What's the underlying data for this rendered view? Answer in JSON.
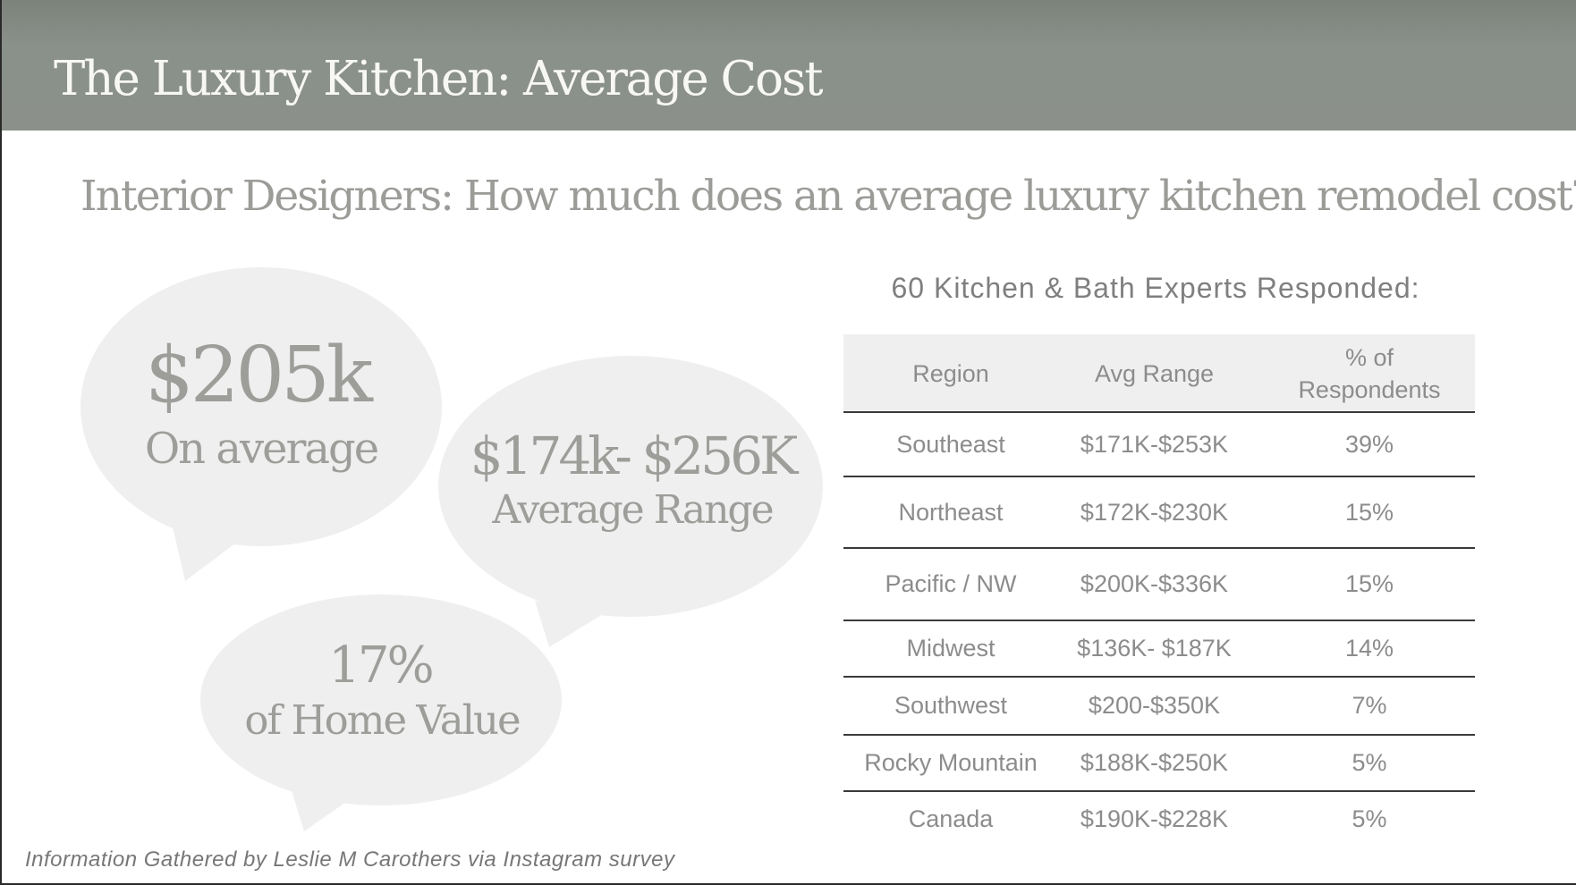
{
  "header": {
    "title": "The Luxury Kitchen:  Average Cost"
  },
  "question": "Interior Designers: How much does an average luxury  kitchen remodel cost?",
  "bubbles": [
    {
      "big": "$205k",
      "small": "On average"
    },
    {
      "big": "$174k- $256K",
      "small": "Average Range"
    },
    {
      "big": "17%",
      "small": "of Home Value"
    }
  ],
  "table": {
    "heading": "60 Kitchen & Bath Experts Responded:",
    "columns": [
      "Region",
      "Avg Range",
      "% of Respondents"
    ],
    "rows": [
      [
        "Southeast",
        "$171K-$253K",
        "39%"
      ],
      [
        "Northeast",
        "$172K-$230K",
        "15%"
      ],
      [
        "Pacific / NW",
        "$200K-$336K",
        "15%"
      ],
      [
        "Midwest",
        "$136K- $187K",
        "14%"
      ],
      [
        "Southwest",
        "$200-$350K",
        "7%"
      ],
      [
        "Rocky Mountain",
        "$188K-$250K",
        "5%"
      ],
      [
        "Canada",
        "$190K-$228K",
        "5%"
      ]
    ]
  },
  "footnote": "Information Gathered by Leslie M Carothers via Instagram survey",
  "colors": {
    "header_band": "#8b918a",
    "bubble_fill": "#efefef",
    "text_gray": "#8c8c8c"
  }
}
